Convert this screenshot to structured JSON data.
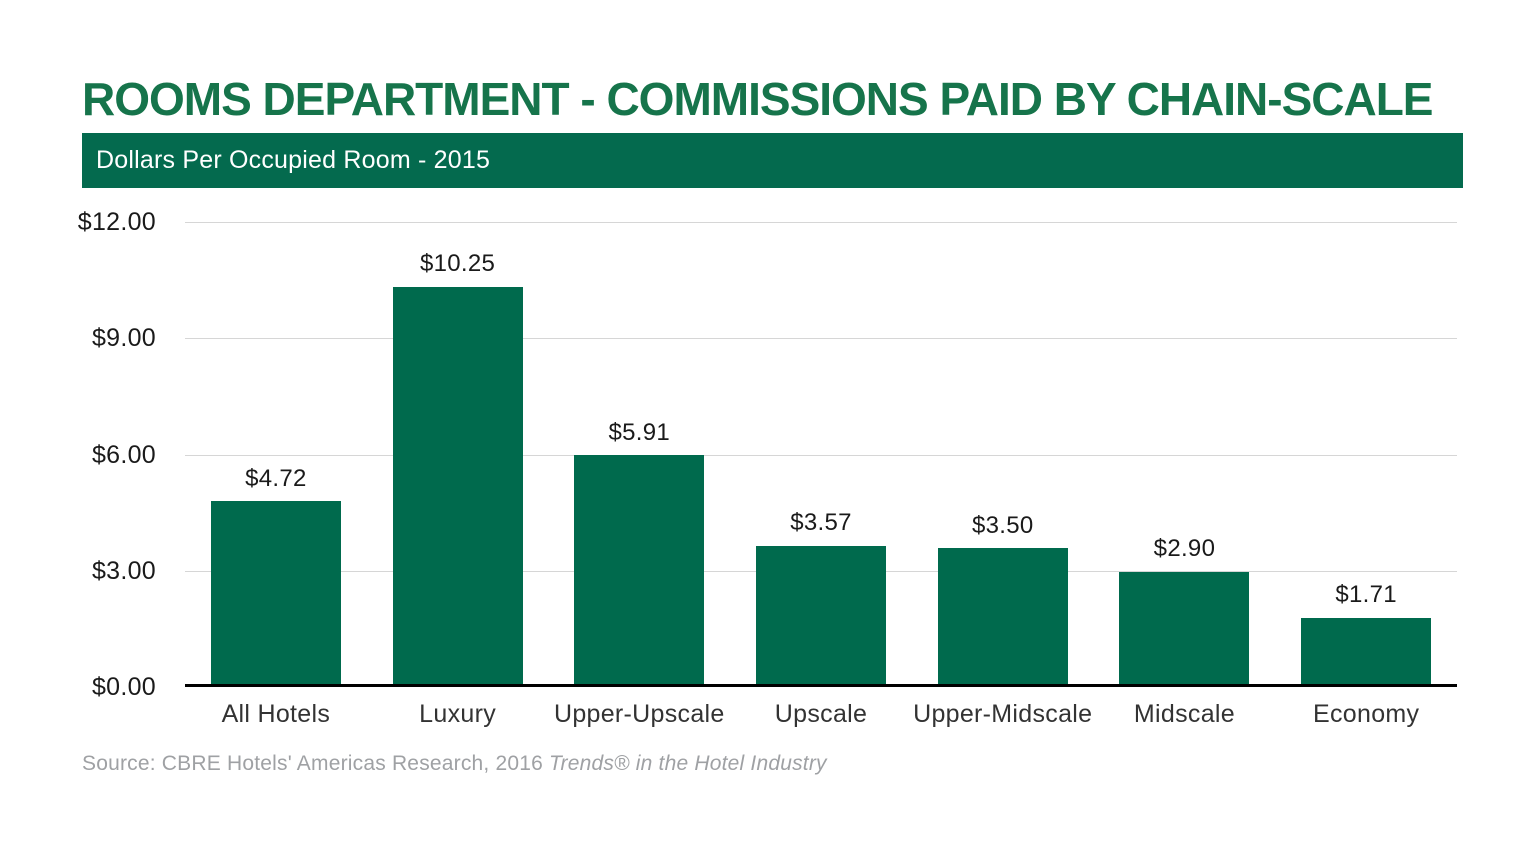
{
  "header": {
    "title": "ROOMS DEPARTMENT - COMMISSIONS PAID BY CHAIN-SCALE",
    "subtitle": "Dollars Per Occupied Room - 2015"
  },
  "footer": {
    "source_prefix": "Source: CBRE Hotels' Americas Research, 2016 ",
    "source_italic": "Trends® in the Hotel Industry"
  },
  "colors": {
    "title_green": "#16744B",
    "band_green": "#046A4E",
    "bar_green": "#006A4D",
    "gridline": "#D6D6D6",
    "axis": "#000000",
    "value_label": "#1A1A1A",
    "category_label": "#333333",
    "source_gray": "#9FA1A4"
  },
  "chart_data": {
    "type": "bar",
    "title": "ROOMS DEPARTMENT - COMMISSIONS PAID BY CHAIN-SCALE",
    "subtitle": "Dollars Per Occupied Room - 2015",
    "categories": [
      "All Hotels",
      "Luxury",
      "Upper-Upscale",
      "Upscale",
      "Upper-Midscale",
      "Midscale",
      "Economy"
    ],
    "values": [
      4.72,
      10.25,
      5.91,
      3.57,
      3.5,
      2.9,
      1.71
    ],
    "value_labels": [
      "$4.72",
      "$10.25",
      "$5.91",
      "$3.57",
      "$3.50",
      "$2.90",
      "$1.71"
    ],
    "xlabel": "",
    "ylabel": "Dollars Per Occupied Room",
    "ylim": [
      0,
      12
    ],
    "y_ticks": [
      {
        "value": 0,
        "label": "$0.00"
      },
      {
        "value": 3,
        "label": "$3.00"
      },
      {
        "value": 6,
        "label": "$6.00"
      },
      {
        "value": 9,
        "label": "$9.00"
      },
      {
        "value": 12,
        "label": "$12.00"
      }
    ],
    "grid": true,
    "legend": "none",
    "bar_color": "#006A4D"
  }
}
